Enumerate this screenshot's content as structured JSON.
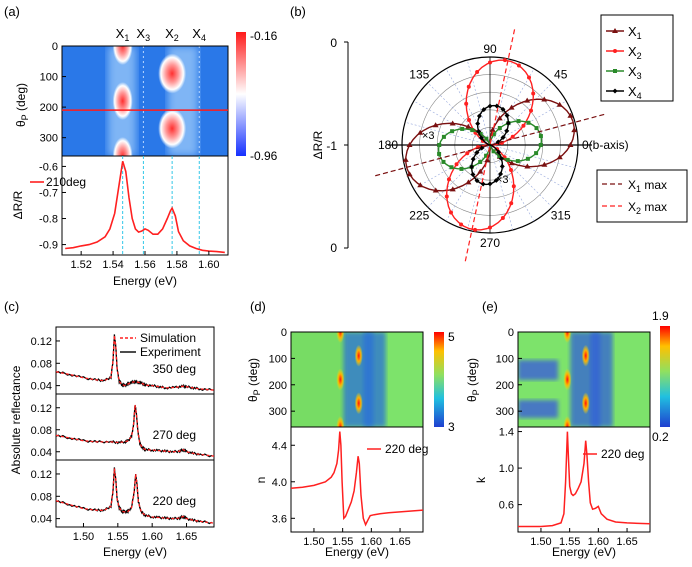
{
  "colors": {
    "red": "#ff2020",
    "darkred": "#7a1010",
    "green": "#2a8a2a",
    "black": "#000000",
    "cyan": "#33c8e8",
    "map_blue": "#2a70e0",
    "map_green": "#7de36b"
  },
  "chart_data": [
    {
      "panel": "(a)",
      "type": "heatmap",
      "ylabel_parts": [
        "θ",
        "P",
        " (deg)"
      ],
      "yticks": [
        "0",
        "100",
        "200",
        "300"
      ],
      "ylim": [
        0,
        360
      ],
      "colorbar": {
        "max": "-0.16",
        "min": "-0.96"
      },
      "peaks": [
        {
          "name": "X",
          "sub": "1",
          "energy": 1.546
        },
        {
          "name": "X",
          "sub": "3",
          "energy": 1.559
        },
        {
          "name": "X",
          "sub": "2",
          "energy": 1.577
        },
        {
          "name": "X",
          "sub": "4",
          "energy": 1.594
        }
      ],
      "cut_angle": 210,
      "line": {
        "ylabel": "ΔR/R",
        "legend": "210deg",
        "yticks": [
          "-0.6",
          "-0.7",
          "-0.8",
          "-0.9"
        ],
        "ylim": [
          -0.94,
          -0.56
        ],
        "xticks": [
          "1.52",
          "1.54",
          "1.56",
          "1.58",
          "1.60"
        ],
        "xlim": [
          1.508,
          1.612
        ],
        "xlabel": "Energy (eV)",
        "x": [
          1.51,
          1.515,
          1.52,
          1.525,
          1.53,
          1.535,
          1.538,
          1.541,
          1.543,
          1.545,
          1.546,
          1.548,
          1.55,
          1.552,
          1.554,
          1.556,
          1.558,
          1.56,
          1.562,
          1.565,
          1.568,
          1.571,
          1.574,
          1.576,
          1.577,
          1.579,
          1.581,
          1.584,
          1.588,
          1.592,
          1.596,
          1.6,
          1.605,
          1.61
        ],
        "y": [
          -0.915,
          -0.912,
          -0.905,
          -0.9,
          -0.89,
          -0.87,
          -0.84,
          -0.78,
          -0.7,
          -0.62,
          -0.58,
          -0.62,
          -0.72,
          -0.8,
          -0.84,
          -0.852,
          -0.848,
          -0.84,
          -0.845,
          -0.86,
          -0.86,
          -0.84,
          -0.8,
          -0.77,
          -0.76,
          -0.79,
          -0.85,
          -0.885,
          -0.905,
          -0.915,
          -0.922,
          -0.925,
          -0.927,
          -0.93
        ]
      }
    },
    {
      "panel": "(b)",
      "type": "polar",
      "ylabel": "ΔR/R",
      "radial_labels": [
        "0",
        "-1",
        "0"
      ],
      "angle_labels": [
        "90",
        "45",
        "0(b-axis)",
        "315",
        "270",
        "225",
        "180",
        "135"
      ],
      "series": [
        {
          "name": "X",
          "sub": "1",
          "max_angle": 15,
          "amp": 1.0,
          "marker": "triangle"
        },
        {
          "name": "X",
          "sub": "2",
          "max_angle": 78,
          "amp": 1.0,
          "marker": "circle"
        },
        {
          "name": "X",
          "sub": "3",
          "max_angle": 8,
          "amp": 0.6,
          "marker": "square"
        },
        {
          "name": "X",
          "sub": "4",
          "max_angle": 82,
          "amp": 0.46,
          "marker": "diamond"
        }
      ],
      "annotations": [
        {
          "text": "×3"
        },
        {
          "text": "×3"
        }
      ],
      "max_lines": [
        {
          "name": "X",
          "sub": "1",
          "suffix": " max"
        },
        {
          "name": "X",
          "sub": "2",
          "suffix": " max"
        }
      ]
    },
    {
      "panel": "(c)",
      "type": "line",
      "ylabel": "Absolute reflectance",
      "xlabel": "Energy (eV)",
      "xticks": [
        "1.50",
        "1.55",
        "1.60",
        "1.65"
      ],
      "xlim": [
        1.46,
        1.69
      ],
      "legend": [
        "Simulation",
        "Experiment"
      ],
      "subplots": [
        {
          "label": "350 deg",
          "yticks": [
            "0.12",
            "0.08",
            "0.04"
          ],
          "x": [
            1.46,
            1.48,
            1.5,
            1.52,
            1.53,
            1.54,
            1.543,
            1.545,
            1.547,
            1.549,
            1.552,
            1.556,
            1.56,
            1.565,
            1.57,
            1.575,
            1.58,
            1.585,
            1.59,
            1.6,
            1.61,
            1.62,
            1.635,
            1.645,
            1.65,
            1.66,
            1.67,
            1.69
          ],
          "y": [
            0.065,
            0.06,
            0.054,
            0.05,
            0.049,
            0.055,
            0.085,
            0.13,
            0.11,
            0.07,
            0.048,
            0.042,
            0.04,
            0.043,
            0.046,
            0.047,
            0.046,
            0.044,
            0.041,
            0.04,
            0.038,
            0.036,
            0.037,
            0.039,
            0.038,
            0.036,
            0.034,
            0.032
          ]
        },
        {
          "label": "270 deg",
          "yticks": [
            "0.12",
            "0.08",
            "0.04"
          ],
          "x": [
            1.46,
            1.48,
            1.5,
            1.52,
            1.54,
            1.55,
            1.56,
            1.565,
            1.57,
            1.573,
            1.575,
            1.577,
            1.579,
            1.582,
            1.586,
            1.59,
            1.6,
            1.61,
            1.62,
            1.63,
            1.64,
            1.645,
            1.65,
            1.66,
            1.67,
            1.69
          ],
          "y": [
            0.07,
            0.065,
            0.06,
            0.058,
            0.058,
            0.057,
            0.058,
            0.06,
            0.068,
            0.09,
            0.125,
            0.11,
            0.08,
            0.055,
            0.047,
            0.044,
            0.043,
            0.042,
            0.041,
            0.04,
            0.041,
            0.044,
            0.04,
            0.037,
            0.035,
            0.032
          ]
        },
        {
          "label": "220 deg",
          "yticks": [
            "0.12",
            "0.08",
            "0.04"
          ],
          "x": [
            1.46,
            1.48,
            1.5,
            1.52,
            1.53,
            1.54,
            1.543,
            1.545,
            1.547,
            1.549,
            1.552,
            1.556,
            1.56,
            1.565,
            1.57,
            1.574,
            1.576,
            1.578,
            1.58,
            1.584,
            1.59,
            1.6,
            1.61,
            1.62,
            1.63,
            1.64,
            1.645,
            1.65,
            1.66,
            1.67,
            1.69
          ],
          "y": [
            0.072,
            0.065,
            0.058,
            0.055,
            0.055,
            0.062,
            0.09,
            0.13,
            0.11,
            0.075,
            0.06,
            0.053,
            0.052,
            0.053,
            0.06,
            0.09,
            0.12,
            0.1,
            0.07,
            0.052,
            0.046,
            0.043,
            0.042,
            0.041,
            0.04,
            0.041,
            0.044,
            0.04,
            0.037,
            0.035,
            0.032
          ]
        }
      ],
      "ylim": [
        0.025,
        0.145
      ]
    },
    {
      "panel": "(d)",
      "type": "heatmap",
      "ylabel_parts": [
        "θ",
        "P",
        " (deg)"
      ],
      "yticks": [
        "0",
        "100",
        "200",
        "300"
      ],
      "colorbar": {
        "max": "5",
        "min": "3"
      },
      "line": {
        "ylabel": "n",
        "legend": "220 deg",
        "yticks": [
          "4.4",
          "4.0",
          "3.6"
        ],
        "ylim": [
          3.45,
          4.6
        ],
        "xticks": [
          "1.50",
          "1.55",
          "1.60",
          "1.65"
        ],
        "xlim": [
          1.46,
          1.69
        ],
        "xlabel": "Energy (eV)",
        "x": [
          1.46,
          1.48,
          1.5,
          1.52,
          1.53,
          1.535,
          1.54,
          1.543,
          1.545,
          1.547,
          1.549,
          1.552,
          1.555,
          1.56,
          1.565,
          1.57,
          1.574,
          1.577,
          1.579,
          1.582,
          1.586,
          1.59,
          1.594,
          1.598,
          1.605,
          1.615,
          1.63,
          1.65,
          1.67,
          1.69
        ],
        "y": [
          3.93,
          3.94,
          3.96,
          4.0,
          4.05,
          4.1,
          4.2,
          4.35,
          4.55,
          4.4,
          4.0,
          3.6,
          3.62,
          3.7,
          3.78,
          3.9,
          4.1,
          4.28,
          4.2,
          3.85,
          3.6,
          3.53,
          3.58,
          3.63,
          3.64,
          3.65,
          3.66,
          3.67,
          3.68,
          3.69
        ]
      }
    },
    {
      "panel": "(e)",
      "type": "heatmap",
      "ylabel_parts": [
        "θ",
        "P",
        " (deg)"
      ],
      "yticks": [
        "0",
        "100",
        "200",
        "300"
      ],
      "colorbar": {
        "max": "1.9",
        "min": "0.2"
      },
      "line": {
        "ylabel": "k",
        "legend": "220 deg",
        "yticks": [
          "1.4",
          "1.0",
          "0.6"
        ],
        "ylim": [
          0.3,
          1.45
        ],
        "xticks": [
          "1.50",
          "1.55",
          "1.60",
          "1.65"
        ],
        "xlim": [
          1.46,
          1.69
        ],
        "xlabel": "Energy (eV)",
        "x": [
          1.46,
          1.5,
          1.52,
          1.535,
          1.54,
          1.543,
          1.546,
          1.548,
          1.55,
          1.553,
          1.556,
          1.56,
          1.565,
          1.57,
          1.575,
          1.578,
          1.58,
          1.583,
          1.586,
          1.59,
          1.595,
          1.6,
          1.605,
          1.615,
          1.63,
          1.65,
          1.69
        ],
        "y": [
          0.36,
          0.36,
          0.37,
          0.4,
          0.5,
          0.85,
          1.4,
          1.1,
          0.8,
          0.72,
          0.7,
          0.72,
          0.78,
          0.85,
          1.05,
          1.3,
          1.15,
          0.85,
          0.62,
          0.55,
          0.56,
          0.58,
          0.5,
          0.44,
          0.41,
          0.4,
          0.39
        ]
      }
    }
  ]
}
